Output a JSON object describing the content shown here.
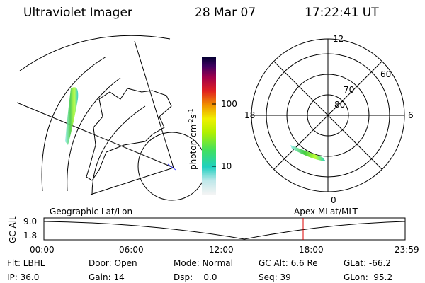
{
  "header": {
    "title": "Ultraviolet Imager",
    "date": "28 Mar 07",
    "time": "17:22:41 UT"
  },
  "colorbar": {
    "label": "photon cm",
    "exp1": "-2",
    "unit2": "s",
    "exp2": "-1",
    "ticks": [
      "100",
      "10"
    ]
  },
  "polar": {
    "labels": {
      "top": "12",
      "left": "18",
      "right": "6",
      "bottom": "0"
    },
    "rings": [
      "80",
      "70",
      "60"
    ]
  },
  "timeline": {
    "left_title": "Geographic Lat/Lon",
    "right_title": "Apex MLat/MLT",
    "axis_label": "GC Alt",
    "yticks": [
      "9.0",
      "1.8"
    ],
    "xticks": [
      "00:00",
      "06:00",
      "12:00",
      "18:00",
      "23:59"
    ]
  },
  "footer": {
    "rows": [
      [
        "Flt: LBHL",
        "Door: Open",
        "Mode: Normal",
        "GC Alt: 6.6 Re",
        "GLat: -66.2"
      ],
      [
        "IP: 36.0",
        "Gain: 14",
        "Dsp:    0.0",
        "Seq: 39",
        "GLon:  95.2"
      ]
    ]
  }
}
